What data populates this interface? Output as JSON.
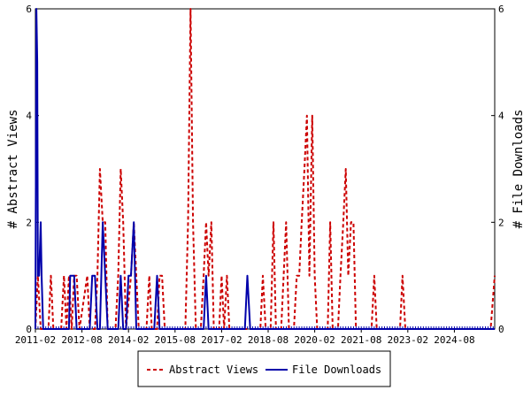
{
  "chart_data": {
    "type": "line",
    "x_tick_labels": [
      "2011-02",
      "2012-08",
      "2014-02",
      "2015-08",
      "2017-02",
      "2018-08",
      "2020-02",
      "2021-08",
      "2023-02",
      "2024-08"
    ],
    "ylabel_left": "# Abstract Views",
    "ylabel_right": "# File Downloads",
    "ylim_left": [
      0,
      6
    ],
    "ylim_right": [
      0,
      6
    ],
    "y_ticks_left": [
      "0",
      "2",
      "4",
      "6"
    ],
    "y_ticks_right": [
      "0",
      "2",
      "4",
      "6"
    ],
    "xlim": [
      2011.0,
      2025.8
    ],
    "legend_position": "bottom-center",
    "grid": false,
    "series": [
      {
        "name": "Abstract Views",
        "color": "#cc0000",
        "style": "dashed",
        "points": [
          [
            2011.0,
            0
          ],
          [
            2011.08,
            1
          ],
          [
            2011.17,
            0
          ],
          [
            2011.33,
            0
          ],
          [
            2011.42,
            0
          ],
          [
            2011.5,
            1
          ],
          [
            2011.58,
            0
          ],
          [
            2011.83,
            0
          ],
          [
            2011.92,
            1
          ],
          [
            2012.0,
            0
          ],
          [
            2012.08,
            1
          ],
          [
            2012.17,
            0
          ],
          [
            2012.25,
            1
          ],
          [
            2012.33,
            1
          ],
          [
            2012.42,
            0
          ],
          [
            2012.67,
            1
          ],
          [
            2012.75,
            0
          ],
          [
            2012.92,
            0
          ],
          [
            2013.0,
            1
          ],
          [
            2013.08,
            3
          ],
          [
            2013.17,
            2
          ],
          [
            2013.25,
            2
          ],
          [
            2013.33,
            0
          ],
          [
            2013.58,
            0
          ],
          [
            2013.67,
            1
          ],
          [
            2013.75,
            3
          ],
          [
            2013.83,
            2
          ],
          [
            2013.92,
            0
          ],
          [
            2014.08,
            1
          ],
          [
            2014.17,
            2
          ],
          [
            2014.25,
            1
          ],
          [
            2014.33,
            0
          ],
          [
            2014.42,
            0
          ],
          [
            2014.58,
            0
          ],
          [
            2014.67,
            1
          ],
          [
            2014.75,
            0
          ],
          [
            2014.92,
            0
          ],
          [
            2015.0,
            1
          ],
          [
            2015.08,
            1
          ],
          [
            2015.17,
            0
          ],
          [
            2015.83,
            0
          ],
          [
            2015.92,
            2
          ],
          [
            2016.0,
            6
          ],
          [
            2016.08,
            2
          ],
          [
            2016.17,
            0
          ],
          [
            2016.33,
            0
          ],
          [
            2016.42,
            1
          ],
          [
            2016.5,
            2
          ],
          [
            2016.58,
            1
          ],
          [
            2016.67,
            2
          ],
          [
            2016.75,
            0
          ],
          [
            2016.92,
            0
          ],
          [
            2017.0,
            1
          ],
          [
            2017.08,
            0
          ],
          [
            2017.17,
            1
          ],
          [
            2017.25,
            0
          ],
          [
            2018.0,
            0
          ],
          [
            2018.25,
            0
          ],
          [
            2018.33,
            1
          ],
          [
            2018.42,
            0
          ],
          [
            2018.58,
            0
          ],
          [
            2018.67,
            2
          ],
          [
            2018.75,
            0
          ],
          [
            2018.92,
            0
          ],
          [
            2019.0,
            1
          ],
          [
            2019.08,
            2
          ],
          [
            2019.17,
            0
          ],
          [
            2019.33,
            0
          ],
          [
            2019.42,
            1
          ],
          [
            2019.5,
            1
          ],
          [
            2019.58,
            2
          ],
          [
            2019.67,
            3
          ],
          [
            2019.75,
            4
          ],
          [
            2019.83,
            1
          ],
          [
            2019.92,
            4
          ],
          [
            2020.0,
            1
          ],
          [
            2020.08,
            0
          ],
          [
            2020.42,
            0
          ],
          [
            2020.5,
            2
          ],
          [
            2020.58,
            0
          ],
          [
            2020.75,
            0
          ],
          [
            2020.83,
            1
          ],
          [
            2020.92,
            2
          ],
          [
            2021.0,
            3
          ],
          [
            2021.08,
            1
          ],
          [
            2021.17,
            2
          ],
          [
            2021.25,
            2
          ],
          [
            2021.33,
            0
          ],
          [
            2021.83,
            0
          ],
          [
            2021.92,
            1
          ],
          [
            2022.0,
            0
          ],
          [
            2022.75,
            0
          ],
          [
            2022.83,
            1
          ],
          [
            2022.92,
            0
          ],
          [
            2025.67,
            0
          ],
          [
            2025.8,
            1
          ]
        ]
      },
      {
        "name": "File Downloads",
        "color": "#0000aa",
        "style": "solid",
        "points": [
          [
            2011.0,
            0
          ],
          [
            2011.03,
            6
          ],
          [
            2011.06,
            5
          ],
          [
            2011.08,
            1
          ],
          [
            2011.12,
            1
          ],
          [
            2011.17,
            2
          ],
          [
            2011.2,
            1
          ],
          [
            2011.25,
            0
          ],
          [
            2012.08,
            0
          ],
          [
            2012.12,
            1
          ],
          [
            2012.25,
            1
          ],
          [
            2012.33,
            0
          ],
          [
            2012.75,
            0
          ],
          [
            2012.83,
            1
          ],
          [
            2012.92,
            1
          ],
          [
            2013.0,
            0
          ],
          [
            2013.08,
            0
          ],
          [
            2013.17,
            2
          ],
          [
            2013.25,
            1
          ],
          [
            2013.33,
            0
          ],
          [
            2013.67,
            0
          ],
          [
            2013.75,
            1
          ],
          [
            2013.83,
            0
          ],
          [
            2013.92,
            0
          ],
          [
            2014.0,
            1
          ],
          [
            2014.08,
            1
          ],
          [
            2014.17,
            2
          ],
          [
            2014.25,
            0
          ],
          [
            2014.83,
            0
          ],
          [
            2014.92,
            1
          ],
          [
            2015.0,
            0
          ],
          [
            2016.42,
            0
          ],
          [
            2016.5,
            1
          ],
          [
            2016.58,
            0
          ],
          [
            2017.75,
            0
          ],
          [
            2017.83,
            1
          ],
          [
            2017.92,
            0
          ],
          [
            2025.8,
            0
          ]
        ]
      }
    ]
  }
}
